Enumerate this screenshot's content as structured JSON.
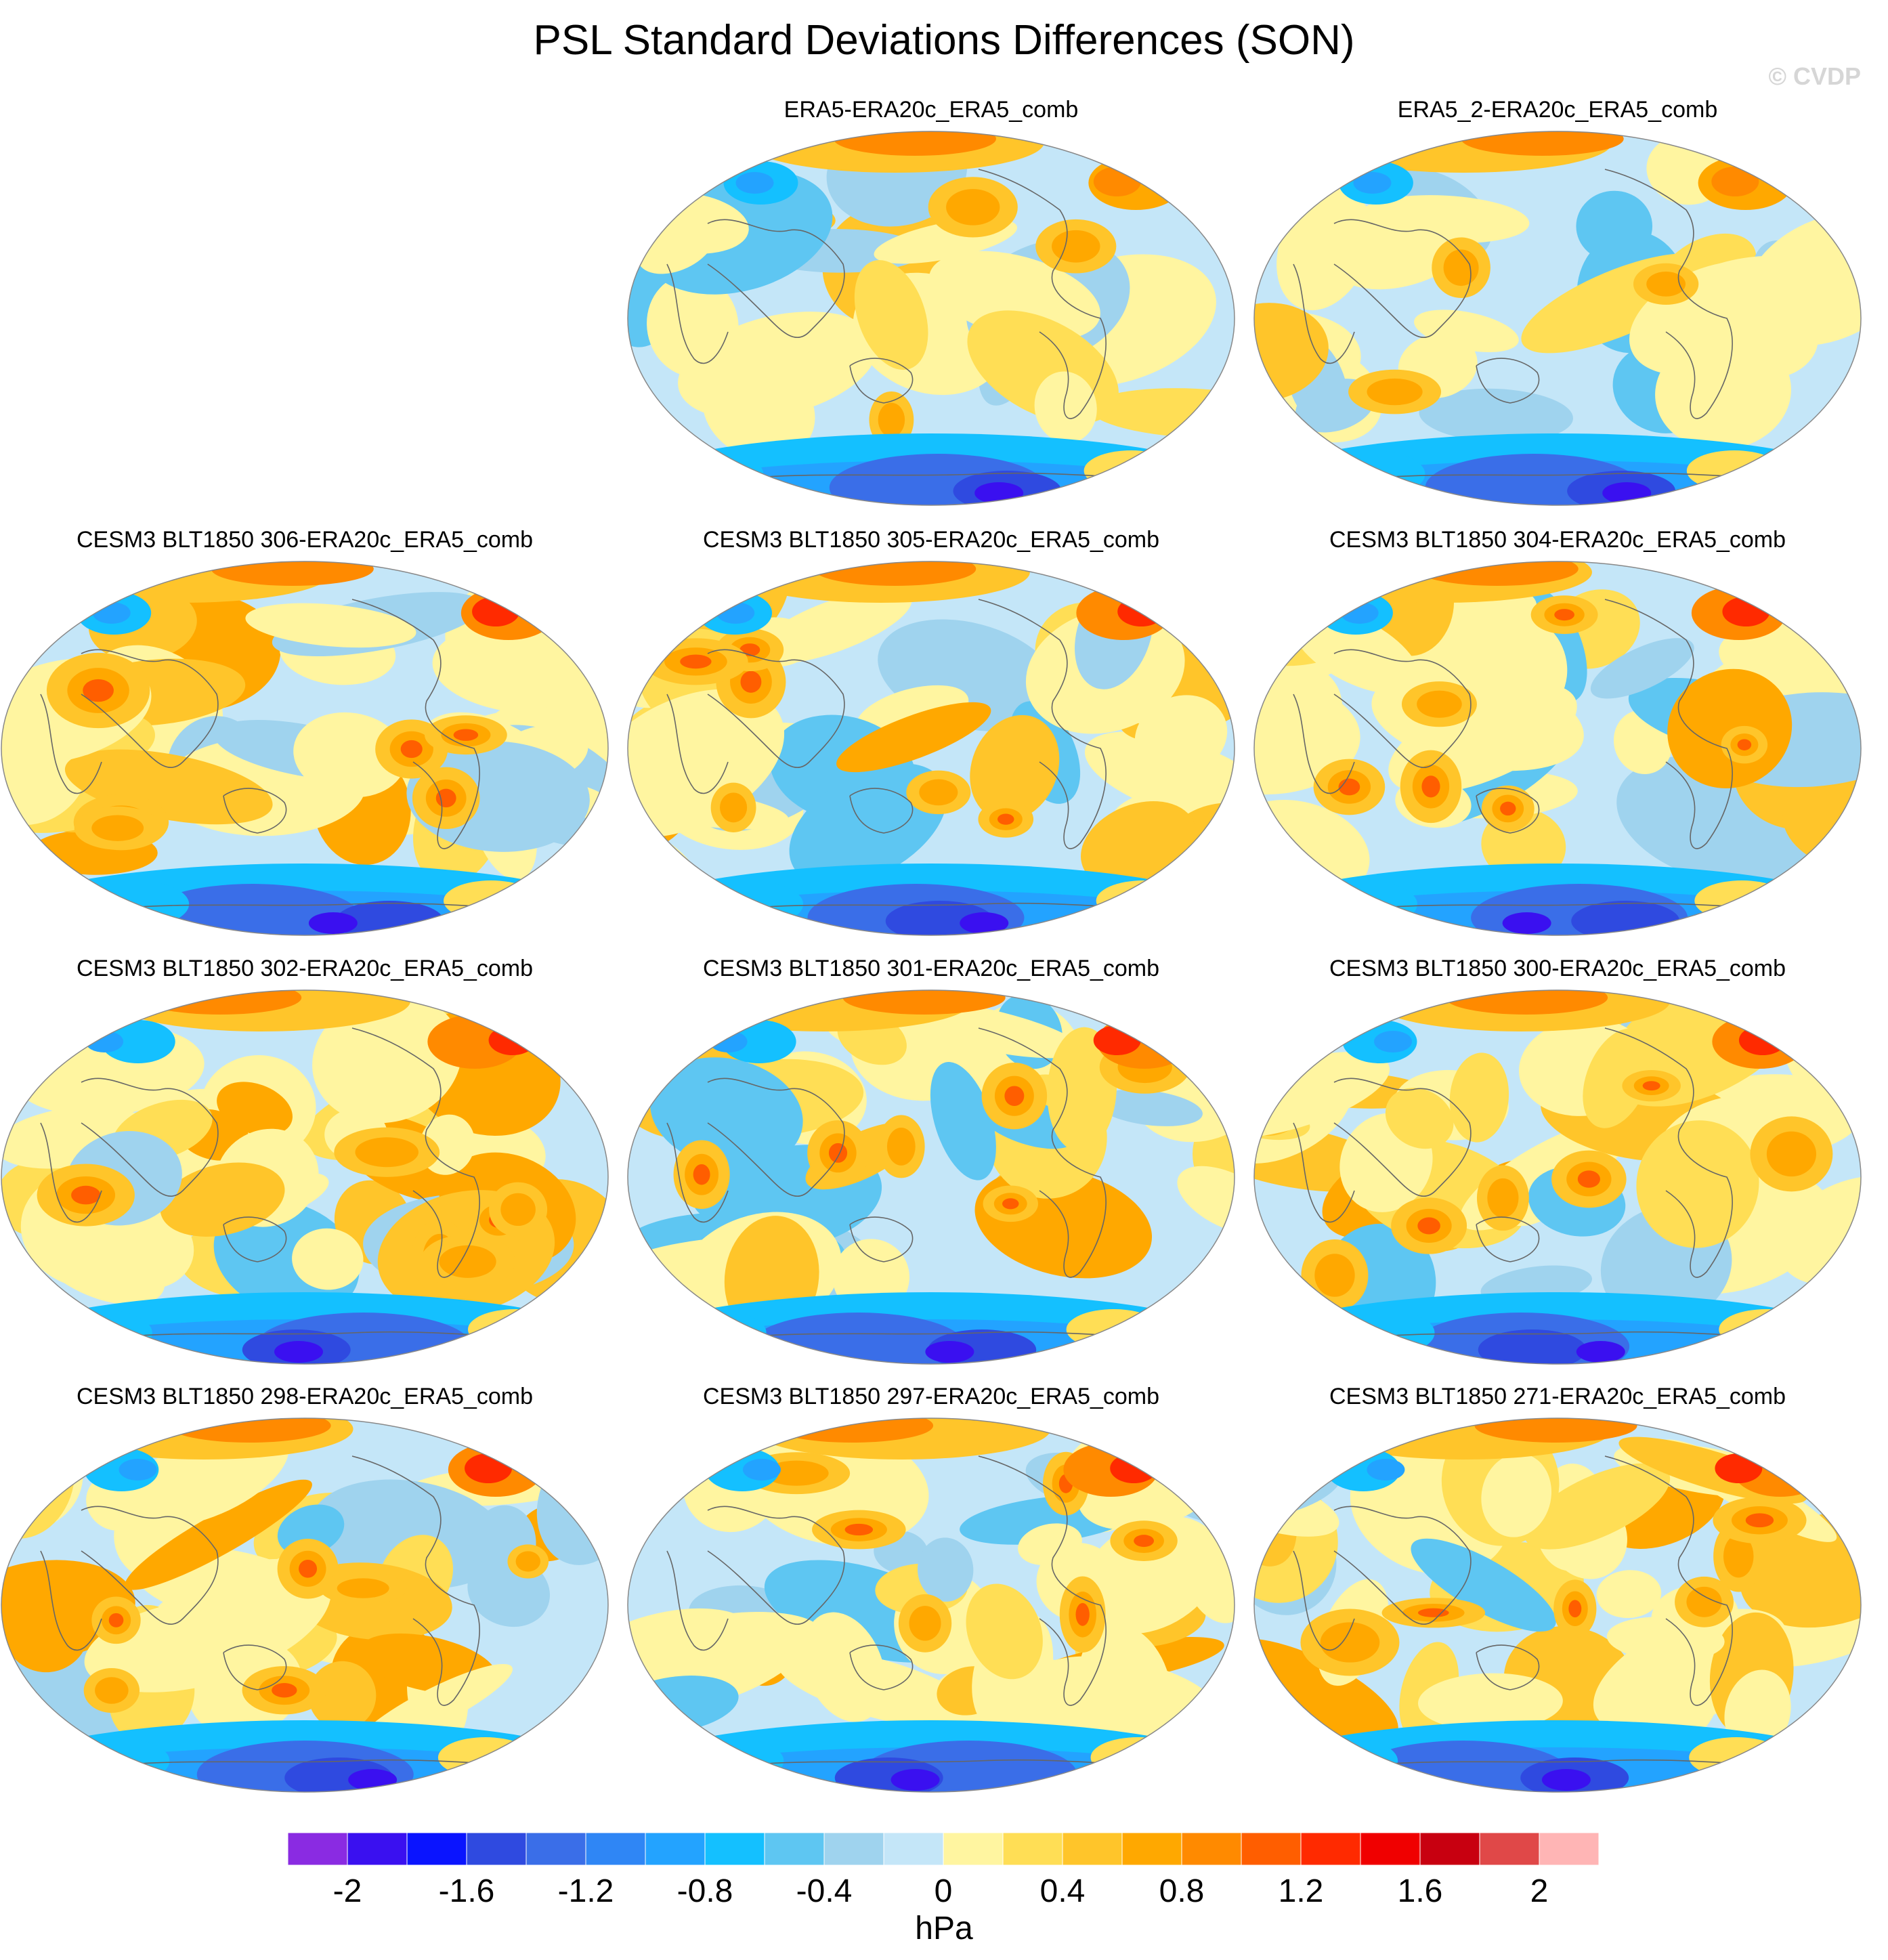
{
  "title": "PSL Standard Deviations Differences (SON)",
  "watermark": "© CVDP",
  "panels": [
    {
      "label": "ERA5-ERA20c_ERA5_comb",
      "variant": 0
    },
    {
      "label": "ERA5_2-ERA20c_ERA5_comb",
      "variant": 1
    },
    {
      "label": "CESM3 BLT1850 306-ERA20c_ERA5_comb",
      "variant": 2
    },
    {
      "label": "CESM3 BLT1850 305-ERA20c_ERA5_comb",
      "variant": 3
    },
    {
      "label": "CESM3 BLT1850 304-ERA20c_ERA5_comb",
      "variant": 4
    },
    {
      "label": "CESM3 BLT1850 302-ERA20c_ERA5_comb",
      "variant": 5
    },
    {
      "label": "CESM3 BLT1850 301-ERA20c_ERA5_comb",
      "variant": 6
    },
    {
      "label": "CESM3 BLT1850 300-ERA20c_ERA5_comb",
      "variant": 7
    },
    {
      "label": "CESM3 BLT1850 298-ERA20c_ERA5_comb",
      "variant": 8
    },
    {
      "label": "CESM3 BLT1850 297-ERA20c_ERA5_comb",
      "variant": 9
    },
    {
      "label": "CESM3 BLT1850 271-ERA20c_ERA5_comb",
      "variant": 10
    }
  ],
  "colorbar": {
    "units": "hPa",
    "tick_labels": [
      "-2",
      "-1.6",
      "-1.2",
      "-0.8",
      "-0.4",
      "0",
      "0.4",
      "0.8",
      "1.2",
      "1.6",
      "2"
    ],
    "colors": [
      "#8a2be2",
      "#3a10f0",
      "#0a14ff",
      "#2f4ae0",
      "#3a6ee8",
      "#2f86f5",
      "#23a3ff",
      "#14c0ff",
      "#5ec6f2",
      "#9fd3ee",
      "#c4e6f8",
      "#fff5a0",
      "#ffde55",
      "#ffc52a",
      "#ffa800",
      "#ff8a00",
      "#ff5e00",
      "#ff2a00",
      "#f00000",
      "#c80010",
      "#e04848",
      "#ffb5b5"
    ]
  }
}
